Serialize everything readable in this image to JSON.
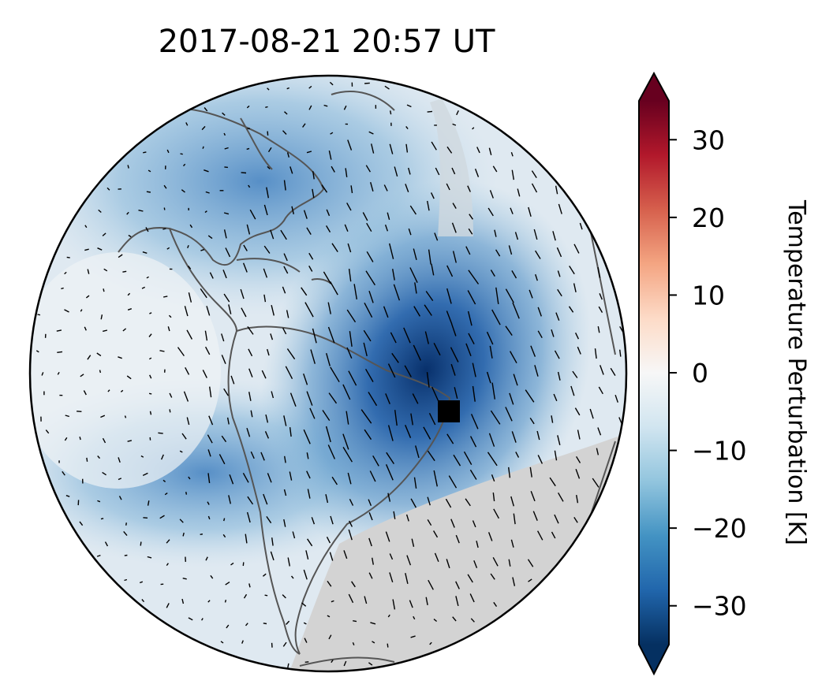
{
  "chart_data": {
    "type": "heatmap",
    "title": "2017-08-21  20:57 UT",
    "projection": "orthographic globe",
    "colorbar": {
      "label": "Temperature Perturbation [K]",
      "colormap": "RdBu_r",
      "range": [
        -35,
        35
      ],
      "extend": "both",
      "ticks": [
        30,
        20,
        10,
        0,
        -10,
        -20,
        -30
      ],
      "tick_labels": [
        "30",
        "20",
        "10",
        "0",
        "−10",
        "−20",
        "−30"
      ]
    },
    "colors": {
      "deep_blue": "#08306b",
      "mid_blue": "#3f7fbf",
      "light_blue": "#a9cde3",
      "neutral": "#f2f2f2",
      "night_gray": "#d3d3d3",
      "coastline": "#555555",
      "marker": "#000000"
    },
    "features": {
      "minimum_region": "South Atlantic, east of Brazil",
      "min_value_approx": -33,
      "marker": "black square near eastern Brazil coast",
      "overlay": "short black line segments (wind vectors)",
      "shading": "gray night-side region on lower right"
    }
  }
}
